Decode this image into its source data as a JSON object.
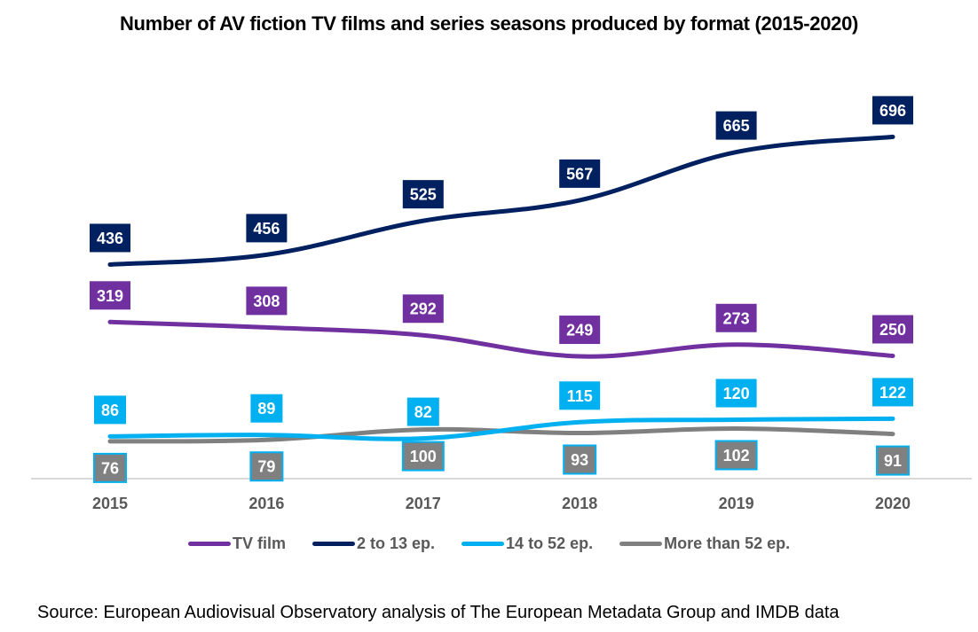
{
  "chart_data": {
    "type": "line",
    "title": "Number of AV fiction TV films and series seasons produced by format (2015-2020)",
    "xlabel": "",
    "ylabel": "",
    "categories": [
      "2015",
      "2016",
      "2017",
      "2018",
      "2019",
      "2020"
    ],
    "ylim": [
      0,
      780
    ],
    "grid": false,
    "legend_position": "bottom",
    "series": [
      {
        "name": "TV film",
        "color": "#7030A0",
        "values": [
          319,
          308,
          292,
          249,
          273,
          250
        ],
        "label_position": "above"
      },
      {
        "name": "2 to 13 ep.",
        "color": "#002060",
        "values": [
          436,
          456,
          525,
          567,
          665,
          696
        ],
        "label_position": "above"
      },
      {
        "name": "14 to 52 ep.",
        "color": "#00B0F0",
        "values": [
          86,
          89,
          82,
          115,
          120,
          122
        ],
        "label_position": "above"
      },
      {
        "name": "More than 52 ep.",
        "color": "#808080",
        "values": [
          76,
          79,
          100,
          93,
          102,
          91
        ],
        "label_position": "below",
        "label_border": "#00B0F0"
      }
    ],
    "source": "Source: European Audiovisual Observatory analysis of The European Metadata Group and IMDB data"
  }
}
